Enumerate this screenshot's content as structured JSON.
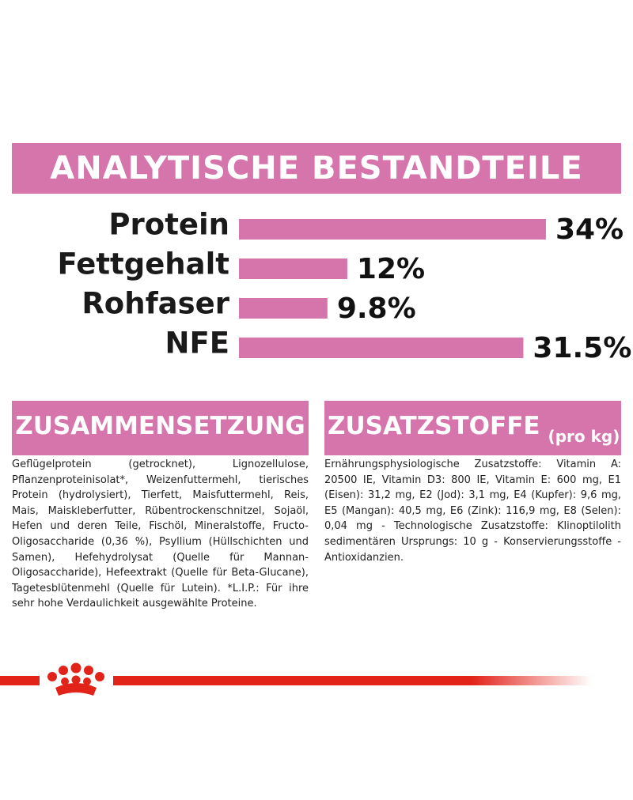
{
  "chart_data": {
    "type": "bar",
    "title": "ANALYTISCHE BESTANDTEILE",
    "categories": [
      "Protein",
      "Fettgehalt",
      "Rohfaser",
      "NFE"
    ],
    "values": [
      34,
      12,
      9.8,
      31.5
    ],
    "value_labels": [
      "34%",
      "12%",
      "9.8%",
      "31.5%"
    ],
    "color": "#d674ac"
  },
  "composition": {
    "title": "ZUSAMMENSETZUNG",
    "text": "Geflügelprotein (getrocknet), Lignozellulose, Pflanzenproteinisolat*, Weizenfuttermehl, tierisches Protein (hydrolysiert), Tierfett, Maisfuttermehl, Reis, Mais, Maiskleberfutter, Rübentrockenschnitzel, Sojaöl, Hefen und deren Teile, Fischöl, Mineralstoffe, Fructo-Oligosaccharide (0,36 %), Psyllium (Hüllschichten und Samen), Hefehydrolysat (Quelle für Mannan-Oligosaccharide), Hefeextrakt (Quelle für Beta-Glucane), Tagetesblütenmehl (Quelle für Lutein). *L.I.P.: Für ihre sehr hohe Verdaulichkeit ausgewählte Proteine."
  },
  "additives": {
    "title": "ZUSATZSTOFFE",
    "unit": "(pro kg)",
    "text": "Ernährungsphysiologische Zusatzstoffe: Vitamin A: 20500 IE, Vitamin D3: 800 IE, Vitamin E: 600 mg, E1 (Eisen): 31,2 mg, E2 (Jod): 3,1 mg, E4 (Kupfer): 9,6 mg, E5 (Mangan): 40,5 mg, E6 (Zink): 116,9 mg, E8 (Selen): 0,04 mg - Technologische Zusatzstoffe: Klinoptilolith sedimentären Ursprungs: 10 g - Konservierungsstoffe - Antioxidanzien."
  }
}
